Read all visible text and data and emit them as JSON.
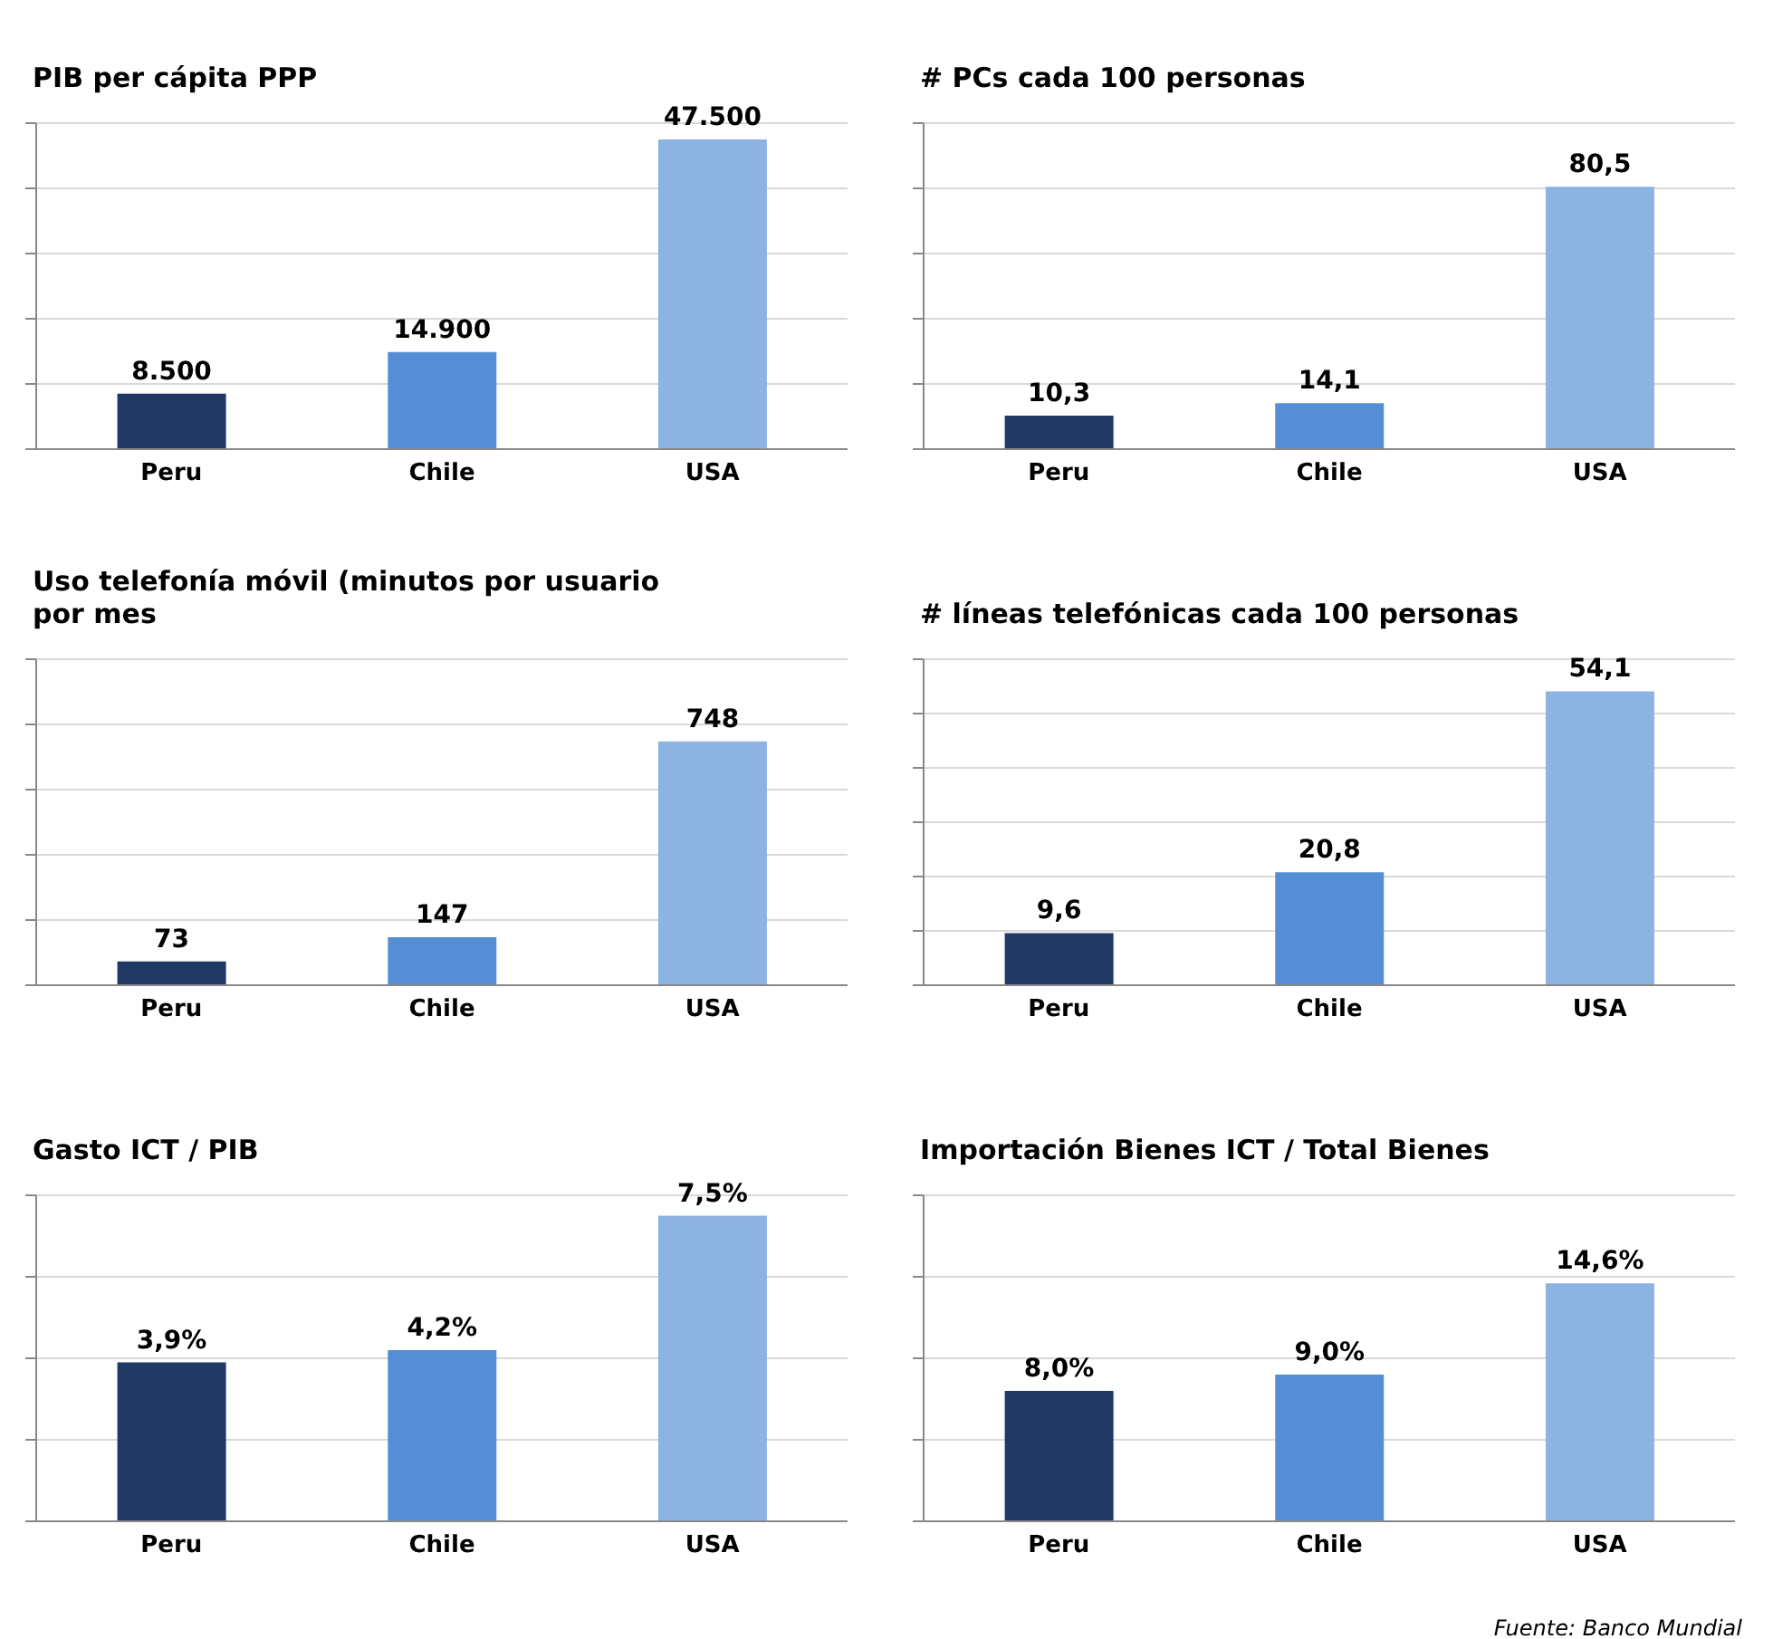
{
  "chart_data": [
    {
      "type": "bar",
      "title": "PIB per cápita PPP",
      "categories": [
        "Peru",
        "Chile",
        "USA"
      ],
      "values": [
        8500,
        14900,
        47500
      ],
      "value_labels": [
        "8.500",
        "14.900",
        "47.500"
      ],
      "colors": [
        "#1f3864",
        "#558ed5",
        "#8db3e2"
      ],
      "ylim": [
        0,
        50000
      ],
      "yticks": [
        {
          "value": 0,
          "label": null
        },
        {
          "value": 10000,
          "label": null
        },
        {
          "value": 20000,
          "label": null
        },
        {
          "value": 30000,
          "label": null
        },
        {
          "value": 40000,
          "label": null
        },
        {
          "value": 50000,
          "label": null
        }
      ],
      "grid": "y",
      "tick_labels": "x"
    },
    {
      "type": "bar",
      "title": "# PCs cada 100 personas",
      "categories": [
        "Peru",
        "Chile",
        "USA"
      ],
      "values": [
        10.3,
        14.1,
        80.5
      ],
      "value_labels": [
        "10,3",
        "14,1",
        "80,5"
      ],
      "colors": [
        "#1f3864",
        "#558ed5",
        "#8db3e2"
      ],
      "ylim": [
        0,
        100
      ],
      "yticks": [
        {
          "value": 0,
          "label": null
        },
        {
          "value": 20,
          "label": null
        },
        {
          "value": 40,
          "label": null
        },
        {
          "value": 60,
          "label": null
        },
        {
          "value": 80,
          "label": null
        },
        {
          "value": 100,
          "label": null
        }
      ],
      "grid": "y",
      "tick_labels": "x"
    },
    {
      "type": "bar",
      "title": "Uso telefonía móvil (minutos por usuario por mes",
      "categories": [
        "Peru",
        "Chile",
        "USA"
      ],
      "values": [
        73,
        147,
        748
      ],
      "value_labels": [
        "73",
        "147",
        "748"
      ],
      "colors": [
        "#1f3864",
        "#558ed5",
        "#8db3e2"
      ],
      "ylim": [
        0,
        1000
      ],
      "yticks": [
        {
          "value": 0,
          "label": null
        },
        {
          "value": 200,
          "label": null
        },
        {
          "value": 400,
          "label": null
        },
        {
          "value": 600,
          "label": null
        },
        {
          "value": 800,
          "label": null
        },
        {
          "value": 1000,
          "label": null
        }
      ],
      "grid": "y",
      "tick_labels": "x"
    },
    {
      "type": "bar",
      "title": "# líneas telefónicas cada 100 personas",
      "categories": [
        "Peru",
        "Chile",
        "USA"
      ],
      "values": [
        9.6,
        20.8,
        54.1
      ],
      "value_labels": [
        "9,6",
        "20,8",
        "54,1"
      ],
      "colors": [
        "#1f3864",
        "#558ed5",
        "#8db3e2"
      ],
      "ylim": [
        0,
        60
      ],
      "yticks": [
        {
          "value": 0,
          "label": null
        },
        {
          "value": 10,
          "label": null
        },
        {
          "value": 20,
          "label": null
        },
        {
          "value": 30,
          "label": null
        },
        {
          "value": 40,
          "label": null
        },
        {
          "value": 50,
          "label": null
        },
        {
          "value": 60,
          "label": null
        }
      ],
      "grid": "y",
      "tick_labels": "x"
    },
    {
      "type": "bar",
      "title": "Gasto ICT / PIB",
      "categories": [
        "Peru",
        "Chile",
        "USA"
      ],
      "values": [
        3.9,
        4.2,
        7.5
      ],
      "value_labels": [
        "3,9%",
        "4,2%",
        "7,5%"
      ],
      "colors": [
        "#1f3864",
        "#558ed5",
        "#8db3e2"
      ],
      "ylim": [
        0,
        8
      ],
      "yticks": [
        {
          "value": 0,
          "label": null
        },
        {
          "value": 2,
          "label": null
        },
        {
          "value": 4,
          "label": null
        },
        {
          "value": 6,
          "label": null
        },
        {
          "value": 8,
          "label": null
        }
      ],
      "grid": "y",
      "tick_labels": "x"
    },
    {
      "type": "bar",
      "title": "Importación Bienes ICT / Total Bienes",
      "categories": [
        "Peru",
        "Chile",
        "USA"
      ],
      "values": [
        8.0,
        9.0,
        14.6
      ],
      "value_labels": [
        "8,0%",
        "9,0%",
        "14,6%"
      ],
      "colors": [
        "#1f3864",
        "#558ed5",
        "#8db3e2"
      ],
      "ylim": [
        0,
        20
      ],
      "yticks": [
        {
          "value": 0,
          "label": null
        },
        {
          "value": 5,
          "label": null
        },
        {
          "value": 10,
          "label": null
        },
        {
          "value": 15,
          "label": null
        },
        {
          "value": 20,
          "label": null
        }
      ],
      "grid": "y",
      "tick_labels": "x",
      "annotations": [
        "Fuente: Banco Mundial"
      ]
    }
  ]
}
